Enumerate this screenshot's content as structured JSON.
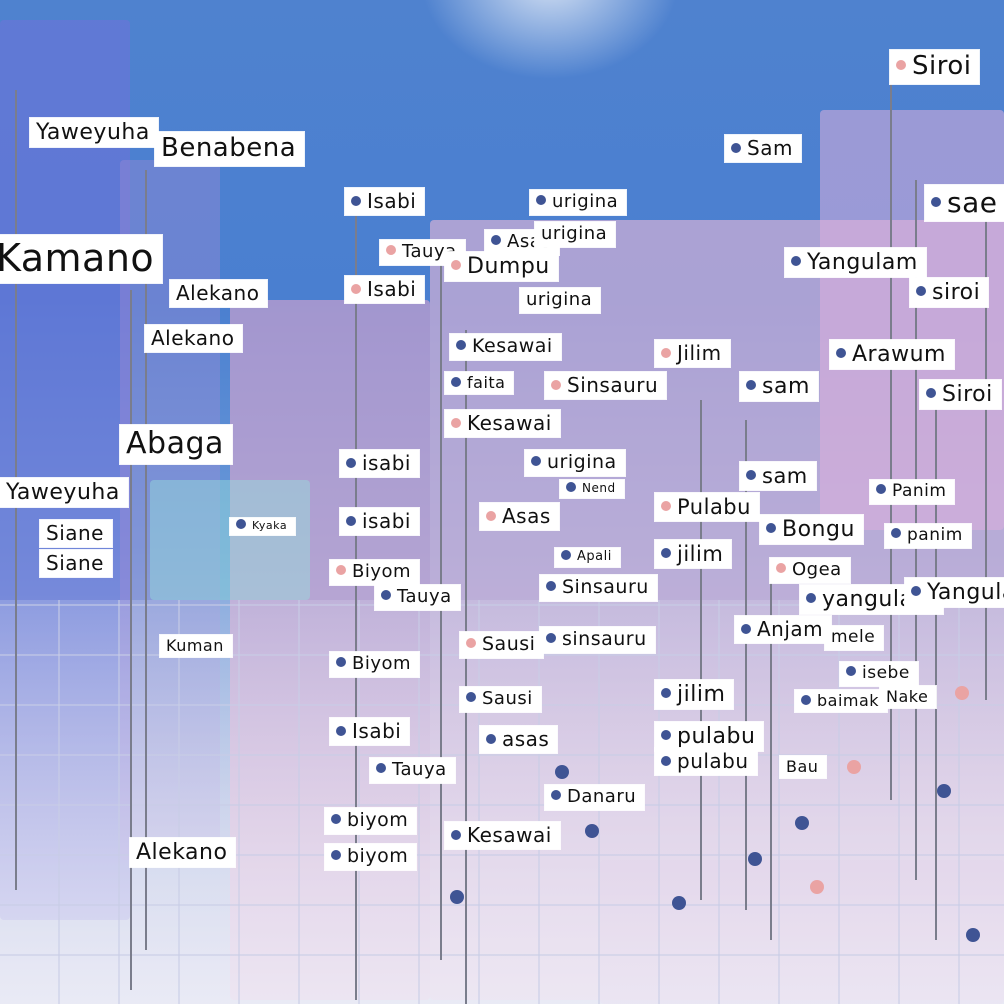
{
  "colors": {
    "sky": "#4f82cf",
    "marker_blue": "#3f5494",
    "marker_pink": "#eaa3a3",
    "label_bg": "#ffffff"
  },
  "labels": [
    "Siroi",
    "Yaweyuha",
    "Benabena",
    "Isabi",
    "urigina",
    "Sam",
    "Kamano",
    "Tauya",
    "Dumpu",
    "Asas",
    "Alekano",
    "Kesawai",
    "faita",
    "Sinsauru",
    "Jilim",
    "Abaga",
    "isabi",
    "Siane",
    "Biyom",
    "Kuman",
    "Sausi",
    "sinsauru",
    "Isabi",
    "asas",
    "Danaru",
    "biyom",
    "Bongu",
    "Arawum",
    "Yangulam",
    "siroi",
    "sam",
    "Pulabu",
    "Anjam",
    "yangulam",
    "pulabu",
    "jilim",
    "Kyaka",
    "Apali",
    "panim",
    "Panim",
    "Ogea",
    "isebe",
    "baimak",
    "Nake",
    "mele",
    "Bau",
    "Nend",
    "sae"
  ]
}
